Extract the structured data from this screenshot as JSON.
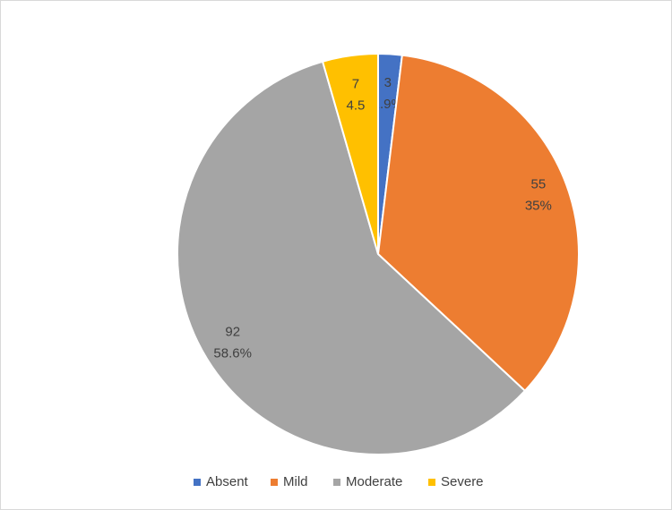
{
  "chart_data": {
    "type": "pie",
    "categories": [
      "Absent",
      "Mild",
      "Moderate",
      "Severe"
    ],
    "values": [
      3,
      55,
      92,
      7
    ],
    "percents": [
      1.9,
      35,
      58.6,
      4.5
    ],
    "percent_labels": [
      "1.9%",
      "35%",
      "58.6%",
      "4.5"
    ],
    "colors": [
      "#4472c4",
      "#ed7d31",
      "#a5a5a5",
      "#ffc000"
    ],
    "legend": "bottom"
  }
}
